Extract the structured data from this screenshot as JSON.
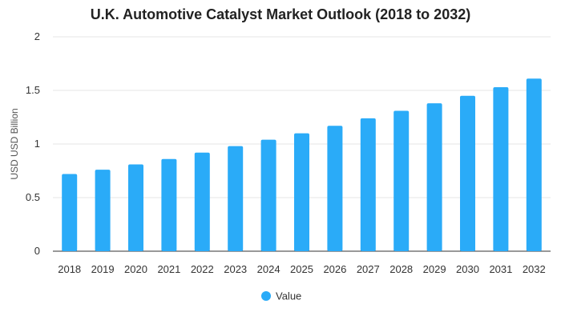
{
  "chart_data": {
    "type": "bar",
    "title": "U.K. Automotive Catalyst Market Outlook (2018 to 2032)",
    "xlabel": "",
    "ylabel": "USD USD Billion",
    "categories": [
      "2018",
      "2019",
      "2020",
      "2021",
      "2022",
      "2023",
      "2024",
      "2025",
      "2026",
      "2027",
      "2028",
      "2029",
      "2030",
      "2031",
      "2032"
    ],
    "series": [
      {
        "name": "Value",
        "color": "#2aabf8",
        "values": [
          0.72,
          0.76,
          0.81,
          0.86,
          0.92,
          0.98,
          1.04,
          1.1,
          1.17,
          1.24,
          1.31,
          1.38,
          1.45,
          1.53,
          1.61
        ]
      }
    ],
    "ylim": [
      0,
      2
    ],
    "yticks": [
      "0",
      "0.5",
      "1",
      "1.5",
      "2"
    ],
    "grid": true,
    "legend_position": "bottom-center"
  }
}
